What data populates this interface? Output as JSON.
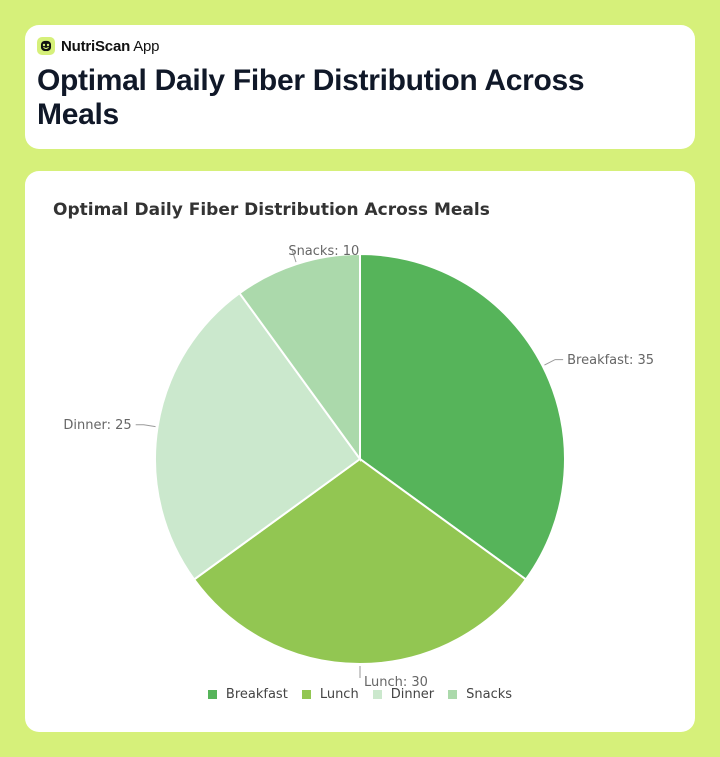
{
  "app": {
    "brand_bold": "NutriScan",
    "brand_rest": " App",
    "logo_icon": "blob-face-icon",
    "accent": "#d6f07a",
    "page_title": "Optimal Daily Fiber Distribution Across Meals"
  },
  "chart_data": {
    "type": "pie",
    "title": "Optimal Daily Fiber Distribution Across Meals",
    "categories": [
      "Breakfast",
      "Lunch",
      "Dinner",
      "Snacks"
    ],
    "values": [
      35,
      30,
      25,
      10
    ],
    "colors": [
      "#56b45a",
      "#92c652",
      "#cbe8cd",
      "#abd9ab"
    ],
    "slice_labels": [
      "Breakfast: 35",
      "Lunch: 30",
      "Dinner: 25",
      "Snacks: 10"
    ],
    "legend_position": "bottom"
  }
}
